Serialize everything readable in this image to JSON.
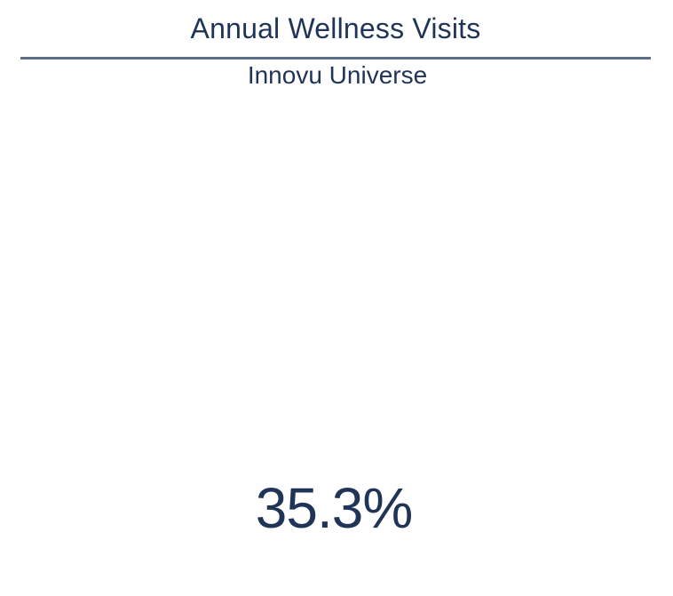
{
  "widget": {
    "title": "Annual Wellness Visits",
    "subtitle": "Innovu Universe",
    "metric_value": "35.3%"
  },
  "colors": {
    "text": "#1f3457",
    "divider": "#5d6f88",
    "background": "#ffffff"
  }
}
